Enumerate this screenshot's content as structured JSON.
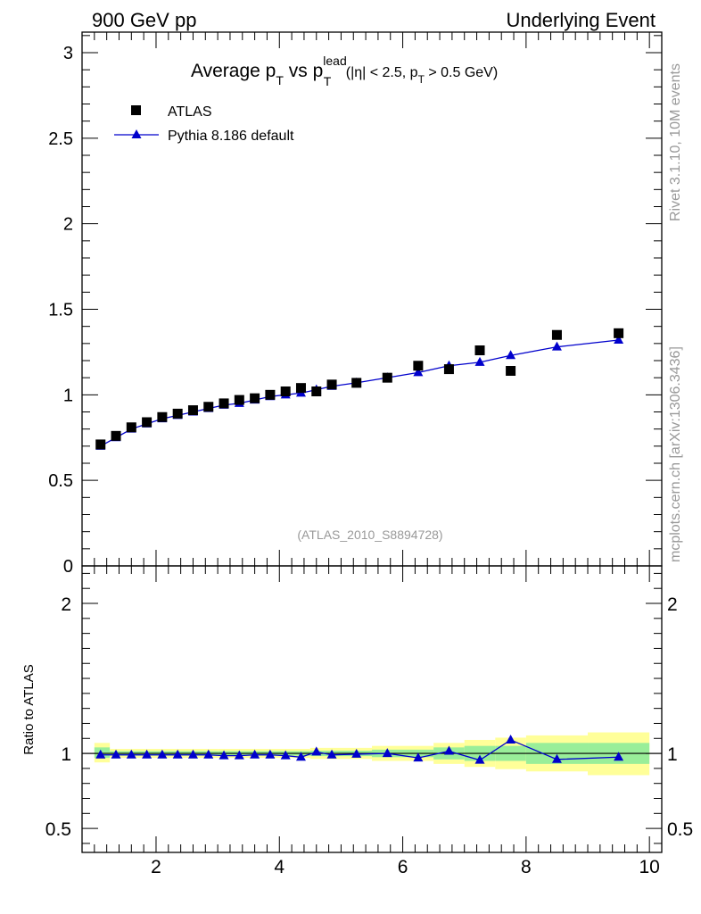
{
  "header": {
    "left": "900 GeV pp",
    "right": "Underlying Event"
  },
  "side": {
    "version": "Rivet 3.1.10,  10M events",
    "source": "mcplots.cern.ch [arXiv:1306.3436]"
  },
  "colors": {
    "atlas": "#000000",
    "mc": "#0000cc",
    "band_inner": "#99ee99",
    "band_outer": "#ffff99",
    "watermark": "#999999"
  },
  "chart_data": [
    {
      "type": "scatter",
      "panel": "main",
      "title_parts": {
        "prefix": "Average p",
        "sub1": "T",
        "mid": " vs p",
        "sup": "lead",
        "sub2": "T",
        "cond1": " (|η| < 2.5, p",
        "cond_sub": "T",
        "cond2": " > 0.5 GeV)"
      },
      "watermark": "(ATLAS_2010_S8894728)",
      "xlim": [
        0.8,
        10.2
      ],
      "ylim": [
        0,
        3.12
      ],
      "yticks": [
        0,
        0.5,
        1,
        1.5,
        2,
        2.5,
        3
      ],
      "ytick_labels": [
        "0",
        "0.5",
        "1",
        "1.5",
        "2",
        "2.5",
        "3"
      ],
      "legend_position": "top-left",
      "series": [
        {
          "name": "ATLAS",
          "marker": "square",
          "x": [
            1.1,
            1.35,
            1.6,
            1.85,
            2.1,
            2.35,
            2.6,
            2.85,
            3.1,
            3.35,
            3.6,
            3.85,
            4.1,
            4.35,
            4.6,
            4.85,
            5.25,
            5.75,
            6.25,
            6.75,
            7.25,
            7.75,
            8.5,
            9.5
          ],
          "y": [
            0.71,
            0.76,
            0.81,
            0.84,
            0.87,
            0.89,
            0.91,
            0.93,
            0.95,
            0.97,
            0.98,
            1.0,
            1.02,
            1.04,
            1.02,
            1.06,
            1.07,
            1.1,
            1.17,
            1.15,
            1.26,
            1.14,
            1.35,
            1.36
          ]
        },
        {
          "name": "Pythia 8.186 default",
          "marker": "triangle",
          "x": [
            1.1,
            1.35,
            1.6,
            1.85,
            2.1,
            2.35,
            2.6,
            2.85,
            3.1,
            3.35,
            3.6,
            3.85,
            4.1,
            4.35,
            4.6,
            4.85,
            5.25,
            5.75,
            6.25,
            6.75,
            7.25,
            7.75,
            8.5,
            9.5
          ],
          "y": [
            0.7,
            0.75,
            0.8,
            0.83,
            0.86,
            0.88,
            0.9,
            0.92,
            0.94,
            0.95,
            0.97,
            0.99,
            1.0,
            1.01,
            1.03,
            1.05,
            1.07,
            1.1,
            1.13,
            1.17,
            1.19,
            1.23,
            1.28,
            1.32
          ]
        }
      ]
    },
    {
      "type": "line",
      "panel": "ratio",
      "ylabel": "Ratio to ATLAS",
      "xlim": [
        0.8,
        10.2
      ],
      "ylim": [
        0.34,
        2.25
      ],
      "xticks": [
        2,
        4,
        6,
        8,
        10
      ],
      "xtick_labels": [
        "2",
        "4",
        "6",
        "8",
        "10"
      ],
      "yticks": [
        0.5,
        1,
        2
      ],
      "ytick_labels": [
        "0.5",
        "1",
        "2"
      ],
      "reference": 1,
      "bands": [
        {
          "x0": 1.0,
          "x1": 1.25,
          "inner": [
            0.97,
            1.04
          ],
          "outer": [
            0.94,
            1.07
          ]
        },
        {
          "x0": 1.25,
          "x1": 3.0,
          "inner": [
            0.985,
            1.015
          ],
          "outer": [
            0.97,
            1.03
          ]
        },
        {
          "x0": 3.0,
          "x1": 4.5,
          "inner": [
            0.985,
            1.015
          ],
          "outer": [
            0.97,
            1.03
          ]
        },
        {
          "x0": 4.5,
          "x1": 5.5,
          "inner": [
            0.982,
            1.018
          ],
          "outer": [
            0.963,
            1.037
          ]
        },
        {
          "x0": 5.5,
          "x1": 6.5,
          "inner": [
            0.975,
            1.025
          ],
          "outer": [
            0.95,
            1.05
          ]
        },
        {
          "x0": 6.5,
          "x1": 7.0,
          "inner": [
            0.96,
            1.04
          ],
          "outer": [
            0.93,
            1.07
          ]
        },
        {
          "x0": 7.0,
          "x1": 7.5,
          "inner": [
            0.95,
            1.05
          ],
          "outer": [
            0.91,
            1.09
          ]
        },
        {
          "x0": 7.5,
          "x1": 8.0,
          "inner": [
            0.95,
            1.05
          ],
          "outer": [
            0.895,
            1.105
          ]
        },
        {
          "x0": 8.0,
          "x1": 9.0,
          "inner": [
            0.93,
            1.07
          ],
          "outer": [
            0.88,
            1.12
          ]
        },
        {
          "x0": 9.0,
          "x1": 10.0,
          "inner": [
            0.93,
            1.07
          ],
          "outer": [
            0.855,
            1.14
          ]
        }
      ],
      "series": [
        {
          "name": "Pythia 8.186 default / ATLAS",
          "x": [
            1.1,
            1.35,
            1.6,
            1.85,
            2.1,
            2.35,
            2.6,
            2.85,
            3.1,
            3.35,
            3.6,
            3.85,
            4.1,
            4.35,
            4.6,
            4.85,
            5.25,
            5.75,
            6.25,
            6.75,
            7.25,
            7.75,
            8.5,
            9.5
          ],
          "y": [
            0.99,
            0.99,
            0.99,
            0.99,
            0.99,
            0.99,
            0.99,
            0.99,
            0.985,
            0.985,
            0.99,
            0.99,
            0.985,
            0.975,
            1.01,
            0.99,
            0.995,
            1.0,
            0.97,
            1.015,
            0.955,
            1.09,
            0.96,
            0.975
          ]
        }
      ]
    }
  ]
}
